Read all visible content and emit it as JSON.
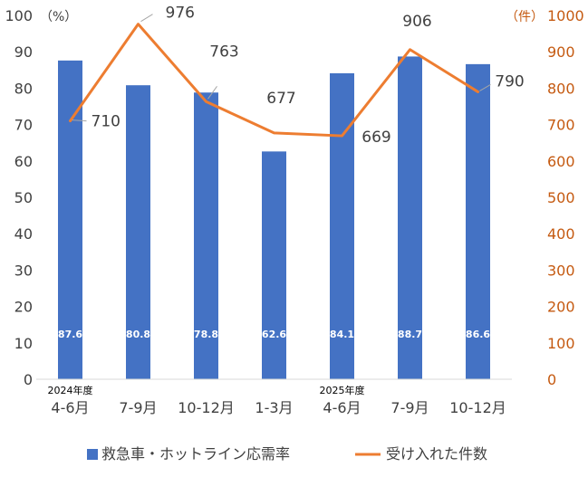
{
  "chart_data": {
    "type": "bar+line",
    "categories": [
      {
        "year": "2024年度",
        "label": "4-6月"
      },
      {
        "year": "",
        "label": "7-9月"
      },
      {
        "year": "",
        "label": "10-12月"
      },
      {
        "year": "",
        "label": "1-3月"
      },
      {
        "year": "2025年度",
        "label": "4-6月"
      },
      {
        "year": "",
        "label": "7-9月"
      },
      {
        "year": "",
        "label": "10-12月"
      }
    ],
    "series": [
      {
        "name": "救急車・ホットライン応需率",
        "type": "bar",
        "axis": "left",
        "color": "#4472C4",
        "values": [
          87.6,
          80.8,
          78.8,
          62.6,
          84.1,
          88.7,
          86.6
        ],
        "value_labels": [
          "87.6",
          "80.8",
          "78.8",
          "62.6",
          "84.1",
          "88.7",
          "86.6"
        ]
      },
      {
        "name": "受け入れた件数",
        "type": "line",
        "axis": "right",
        "color": "#ED7D31",
        "values": [
          710,
          976,
          763,
          677,
          669,
          906,
          790
        ],
        "value_labels": [
          "710",
          "976",
          "763",
          "677",
          "669",
          "906",
          "790"
        ]
      }
    ],
    "left_axis": {
      "range": [
        0,
        100
      ],
      "ticks": [
        "0",
        "10",
        "20",
        "30",
        "40",
        "50",
        "60",
        "70",
        "80",
        "90",
        "100"
      ],
      "unit": "（%）",
      "color": "#404040"
    },
    "right_axis": {
      "range": [
        0,
        1000
      ],
      "ticks": [
        "0",
        "100",
        "200",
        "300",
        "400",
        "500",
        "600",
        "700",
        "800",
        "900",
        "1000"
      ],
      "unit": "（件）",
      "color": "#C55A11"
    },
    "grid": false,
    "legend_position": "bottom"
  }
}
